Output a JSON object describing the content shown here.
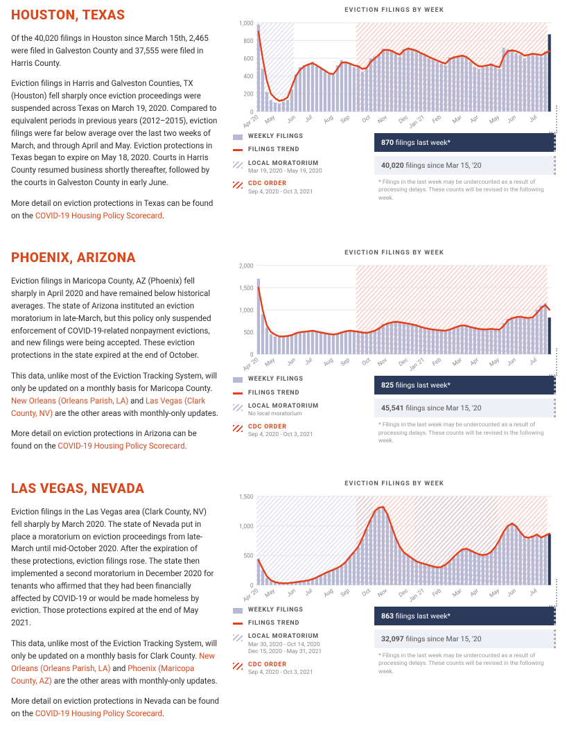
{
  "cities": [
    {
      "id": "houston",
      "title": "HOUSTON, TEXAS",
      "chart_title": "EVICTION FILINGS BY WEEK",
      "para1_a": "Of the 40,020 filings in Houston since March 15th, 2,465 were filed in Galveston County and 37,555 were filed in Harris County.",
      "para2_a": "Eviction filings in Harris and Galveston Counties, TX (Houston) fell sharply once eviction proceedings were suspended across Texas on March 19, 2020. Compared to equivalent periods in previous years (2012–2015), eviction filings were far below average over the last two weeks of March, and through April and May. Eviction protections in Texas began to expire on May 18, 2020. Courts in Harris County resumed business shortly thereafter, followed by the courts in Galveston County in early June.",
      "para3_a": "More detail on eviction protections in Texas can be found on the ",
      "para3_link": "COVID-19 Housing Policy Scorecard",
      "para3_b": ".",
      "legend": {
        "weekly": "WEEKLY FILINGS",
        "trend": "FILINGS TREND",
        "morat_label": "LOCAL MORATORIUM",
        "morat_sub": "Mar 19, 2020 - May 19, 2020",
        "cdc_label": "CDC ORDER",
        "cdc_sub": "Sep 4, 2020 - Oct 3, 2021"
      },
      "stats": {
        "last_week_num": "870",
        "last_week_suffix": " filings last week*",
        "total_num": "40,020",
        "total_suffix": " filings since Mar 15, '20"
      },
      "footnote": "* Filings in the last week may be undercounted as a result of processing delays. These counts will be revised in the following week.",
      "chart": {
        "ylim": [
          0,
          1000
        ],
        "yticks": [
          0,
          200,
          400,
          600,
          800,
          1000
        ],
        "xlabels": [
          "Apr '20",
          "May",
          "Jun",
          "Jul",
          "Aug",
          "Sep",
          "Oct",
          "Nov",
          "Dec",
          "Jan '21",
          "Feb",
          "Mar",
          "Apr",
          "May",
          "Jun",
          "Jul"
        ],
        "moratorium_span": [
          0,
          9
        ],
        "cdc_span": [
          24,
          70
        ],
        "bars": [
          980,
          480,
          220,
          130,
          100,
          90,
          110,
          130,
          250,
          420,
          500,
          520,
          540,
          560,
          510,
          480,
          450,
          420,
          410,
          520,
          580,
          560,
          530,
          500,
          520,
          450,
          480,
          600,
          620,
          650,
          710,
          700,
          680,
          650,
          620,
          700,
          720,
          700,
          680,
          650,
          630,
          600,
          580,
          560,
          540,
          520,
          610,
          620,
          630,
          640,
          620,
          560,
          500,
          480,
          500,
          520,
          540,
          500,
          480,
          720,
          700,
          680,
          660,
          640,
          600,
          640,
          660,
          640,
          620,
          680,
          870
        ],
        "trend": [
          900,
          600,
          350,
          200,
          150,
          120,
          130,
          160,
          280,
          400,
          470,
          510,
          530,
          545,
          520,
          490,
          460,
          430,
          420,
          480,
          550,
          555,
          540,
          520,
          510,
          480,
          490,
          560,
          600,
          640,
          690,
          695,
          685,
          660,
          640,
          690,
          710,
          700,
          685,
          660,
          640,
          615,
          595,
          575,
          555,
          540,
          590,
          610,
          620,
          630,
          615,
          580,
          540,
          510,
          510,
          520,
          530,
          510,
          500,
          620,
          680,
          690,
          680,
          660,
          630,
          640,
          650,
          645,
          635,
          660,
          680
        ],
        "colors": {
          "bar": "#b6b8d4",
          "last_bar": "#2b3a5a",
          "trend": "#e2401b",
          "grid": "#e5e5e5",
          "axis_text": "#888",
          "morat_fill": "#b6b8d4",
          "cdc_fill": "#e2401b"
        }
      }
    },
    {
      "id": "phoenix",
      "title": "PHOENIX, ARIZONA",
      "chart_title": "EVICTION FILINGS BY WEEK",
      "para1_a": "Eviction filings in Maricopa County, AZ (Phoenix) fell sharply in April 2020 and have remained below historical averages. The state of Arizona instituted an eviction moratorium in late-March, but this policy only suspended enforcement of COVID-19-related nonpayment evictions, and new filings were being accepted. These eviction protections in the state expired at the end of October.",
      "para2_a": "This data, unlike most of the Eviction Tracking System, will only be updated on a monthly basis for Maricopa County. ",
      "para2_link1": "New Orleans (Orleans Parish, LA)",
      "para2_b": " and ",
      "para2_link2": "Las Vegas (Clark County, NV)",
      "para2_c": " are the other areas with monthly-only updates.",
      "para3_a": "More detail on eviction protections in Arizona can be found on the ",
      "para3_link": "COVID-19 Housing Policy Scorecard",
      "para3_b": ".",
      "legend": {
        "weekly": "WEEKLY FILINGS",
        "trend": "FILINGS TREND",
        "morat_label": "LOCAL MORATORIUM",
        "morat_sub": "No local moratorium",
        "cdc_label": "CDC ORDER",
        "cdc_sub": "Sep 4, 2020 - Oct 3, 2021"
      },
      "stats": {
        "last_week_num": "825",
        "last_week_suffix": " filings last week*",
        "total_num": "45,541",
        "total_suffix": " filings since Mar 15, '20"
      },
      "footnote": "* Filings in the last week may be undercounted as a result of processing delays. These counts will be revised in the following week.",
      "chart": {
        "ylim": [
          0,
          2000
        ],
        "yticks": [
          0,
          500,
          1000,
          1500,
          2000
        ],
        "xlabels": [
          "Apr '20",
          "May",
          "Jun",
          "Jul",
          "Aug",
          "Sep",
          "Oct",
          "Nov",
          "Dec",
          "Jan '21",
          "Feb",
          "Mar",
          "Apr",
          "May",
          "Jun",
          "Jul"
        ],
        "moratorium_span": null,
        "cdc_span": [
          24,
          70
        ],
        "bars": [
          1700,
          900,
          600,
          450,
          400,
          380,
          400,
          420,
          440,
          480,
          500,
          510,
          520,
          540,
          500,
          480,
          460,
          450,
          440,
          460,
          500,
          520,
          540,
          520,
          500,
          480,
          470,
          500,
          540,
          600,
          680,
          700,
          720,
          740,
          720,
          700,
          680,
          660,
          640,
          600,
          580,
          560,
          550,
          540,
          530,
          520,
          560,
          600,
          640,
          660,
          640,
          600,
          580,
          560,
          550,
          560,
          580,
          560,
          540,
          700,
          800,
          820,
          840,
          850,
          820,
          800,
          840,
          1000,
          1100,
          1150,
          825
        ],
        "trend": [
          1500,
          1000,
          650,
          500,
          440,
          400,
          400,
          410,
          430,
          470,
          495,
          505,
          515,
          530,
          510,
          490,
          470,
          455,
          445,
          455,
          490,
          515,
          530,
          520,
          505,
          490,
          480,
          500,
          530,
          580,
          650,
          690,
          715,
          730,
          720,
          705,
          690,
          670,
          650,
          615,
          590,
          570,
          555,
          545,
          535,
          530,
          555,
          590,
          625,
          650,
          640,
          610,
          590,
          570,
          560,
          560,
          570,
          560,
          555,
          640,
          760,
          810,
          835,
          845,
          825,
          815,
          835,
          930,
          1040,
          1110,
          1000
        ],
        "colors": {
          "bar": "#b6b8d4",
          "last_bar": "#2b3a5a",
          "trend": "#e2401b",
          "grid": "#e5e5e5",
          "axis_text": "#888",
          "morat_fill": "#b6b8d4",
          "cdc_fill": "#e2401b"
        }
      }
    },
    {
      "id": "lasvegas",
      "title": "LAS VEGAS, NEVADA",
      "chart_title": "EVICTION FILINGS BY WEEK",
      "para1_a": "Eviction filings in the Las Vegas area (Clark County, NV) fell sharply by March 2020. The state of Nevada put in place a moratorium on eviction proceedings from late-March until mid-October 2020. After the expiration of these protections, eviction filings rose. The state then implemented a second moratorium in December 2020 for tenants who affirmed that they had been financially affected by COVID-19 or would be made homeless by eviction. Those protections expired at the end of May 2021.",
      "para2_a": "This data, unlike most of the Eviction Tracking System, will only be updated on a monthly basis for Clark County. ",
      "para2_link1": "New Orleans (Orleans Parish, LA)",
      "para2_b": " and ",
      "para2_link2": "Phoenix (Maricopa County, AZ)",
      "para2_c": " are the other areas with monthly-only updates.",
      "para3_a": "More detail on eviction protections in Nevada can be found on the ",
      "para3_link": "COVID-19 Housing Policy Scorecard",
      "para3_b": ".",
      "legend": {
        "weekly": "WEEKLY FILINGS",
        "trend": "FILINGS TREND",
        "morat_label": "LOCAL MORATORIUM",
        "morat_sub": "Mar 30, 2020 - Oct 14, 2020\nDec 15, 2020 - May 31, 2021",
        "cdc_label": "CDC ORDER",
        "cdc_sub": "Sep 4, 2020 - Oct 3, 2021"
      },
      "stats": {
        "last_week_num": "863",
        "last_week_suffix": " filings last week*",
        "total_num": "32,097",
        "total_suffix": " filings since Mar 15, '20"
      },
      "footnote": "* Filings in the last week may be undercounted as a result of processing delays. These counts will be revised in the following week.",
      "chart": {
        "ylim": [
          0,
          1500
        ],
        "yticks": [
          0,
          500,
          1000,
          1500
        ],
        "xlabels": [
          "Apr '20",
          "May",
          "Jun",
          "Jul",
          "Aug",
          "Sep",
          "Oct",
          "Nov",
          "Dec",
          "Jan '21",
          "Feb",
          "Mar",
          "Apr",
          "May",
          "Jun",
          "Jul"
        ],
        "moratorium_span": [
          0,
          28
        ],
        "moratorium_span2": [
          38,
          58
        ],
        "cdc_span": [
          24,
          70
        ],
        "bars": [
          450,
          250,
          120,
          60,
          40,
          30,
          25,
          30,
          40,
          50,
          60,
          70,
          80,
          100,
          130,
          160,
          200,
          230,
          260,
          290,
          320,
          380,
          480,
          550,
          640,
          780,
          950,
          1100,
          1250,
          1300,
          1330,
          1200,
          1000,
          800,
          650,
          550,
          500,
          450,
          400,
          380,
          360,
          340,
          320,
          300,
          300,
          340,
          400,
          480,
          540,
          600,
          620,
          590,
          550,
          520,
          500,
          520,
          560,
          640,
          760,
          900,
          1000,
          1050,
          1000,
          900,
          820,
          800,
          820,
          860,
          800,
          830,
          863
        ],
        "trend": [
          420,
          280,
          150,
          80,
          50,
          35,
          30,
          32,
          40,
          48,
          58,
          68,
          80,
          100,
          130,
          165,
          200,
          230,
          260,
          290,
          330,
          390,
          480,
          560,
          650,
          790,
          960,
          1110,
          1250,
          1310,
          1320,
          1200,
          1000,
          800,
          650,
          550,
          500,
          450,
          400,
          375,
          355,
          335,
          315,
          300,
          305,
          345,
          405,
          480,
          545,
          600,
          615,
          585,
          550,
          520,
          505,
          520,
          560,
          645,
          765,
          905,
          1000,
          1040,
          995,
          895,
          815,
          800,
          820,
          855,
          805,
          835,
          870
        ],
        "colors": {
          "bar": "#b6b8d4",
          "last_bar": "#2b3a5a",
          "trend": "#e2401b",
          "grid": "#e5e5e5",
          "axis_text": "#888",
          "morat_fill": "#b6b8d4",
          "cdc_fill": "#e2401b"
        }
      }
    }
  ]
}
